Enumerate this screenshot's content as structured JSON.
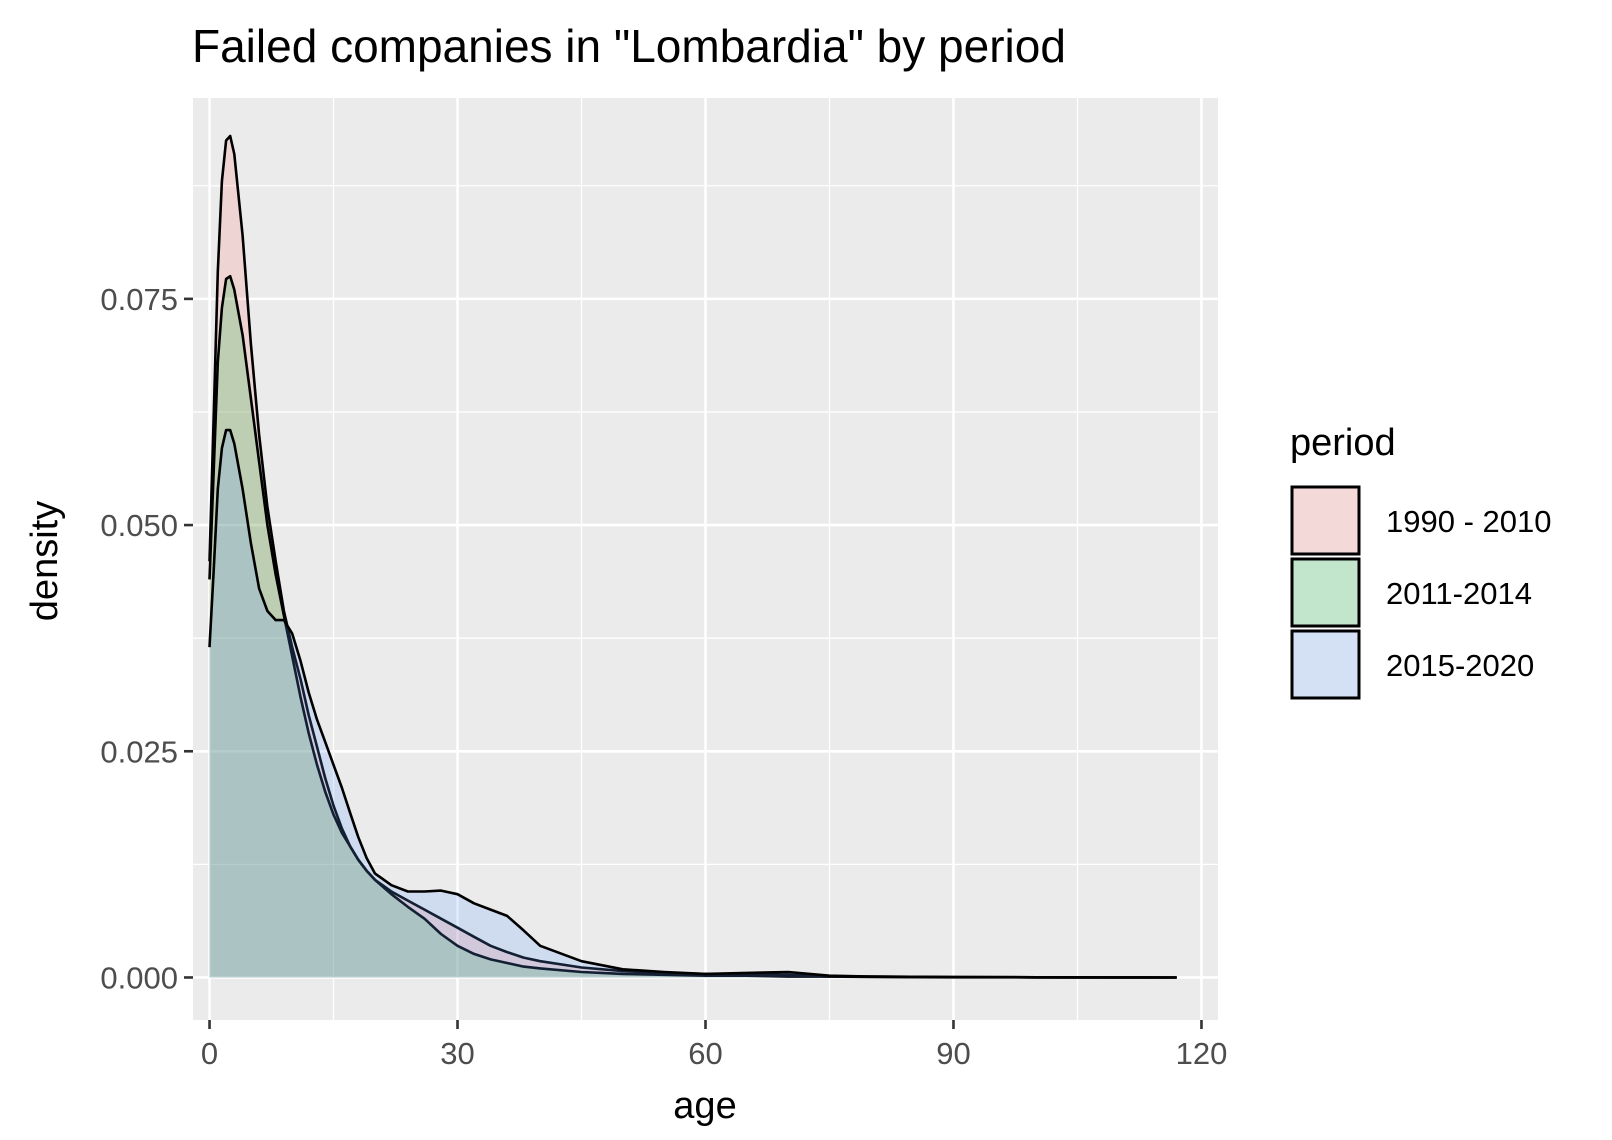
{
  "chart_data": {
    "type": "area",
    "title": "Failed companies in \"Lombardia\" by period",
    "xlabel": "age",
    "ylabel": "density",
    "xlim": [
      -2,
      122
    ],
    "ylim": [
      -0.0047,
      0.0972
    ],
    "x_ticks": [
      0,
      30,
      60,
      90,
      120
    ],
    "x_tick_labels": [
      "0",
      "30",
      "60",
      "90",
      "120"
    ],
    "y_ticks": [
      0.0,
      0.025,
      0.05,
      0.075
    ],
    "y_tick_labels": [
      "0.000",
      "0.025",
      "0.050",
      "0.075"
    ],
    "grid": true,
    "legend": {
      "title": "period",
      "position": "right"
    },
    "series": [
      {
        "name": "1990 - 2010",
        "fill": "#F8766D",
        "x": [
          0,
          0.5,
          1,
          1.5,
          2,
          2.5,
          3,
          4,
          5,
          6,
          7,
          8,
          9,
          10,
          11,
          12,
          13,
          14,
          15,
          16,
          17,
          18,
          19,
          20,
          22,
          24,
          26,
          28,
          30,
          32,
          34,
          36,
          38,
          40,
          45,
          50,
          55,
          60,
          65,
          70,
          75,
          80,
          90,
          100,
          110,
          117
        ],
        "values": [
          0.046,
          0.062,
          0.078,
          0.088,
          0.0925,
          0.093,
          0.091,
          0.082,
          0.07,
          0.06,
          0.052,
          0.046,
          0.0405,
          0.0365,
          0.033,
          0.029,
          0.0255,
          0.022,
          0.019,
          0.0165,
          0.0145,
          0.013,
          0.0118,
          0.0108,
          0.0095,
          0.0085,
          0.0075,
          0.0065,
          0.0055,
          0.0045,
          0.0035,
          0.0028,
          0.0022,
          0.0018,
          0.0011,
          0.0007,
          0.0005,
          0.0004,
          0.0003,
          0.0003,
          0.0001,
          0.0001,
          5e-05,
          2e-05,
          1e-05,
          0.0
        ]
      },
      {
        "name": "2011-2014",
        "fill": "#00BA38",
        "x": [
          0,
          0.5,
          1,
          1.5,
          2,
          2.5,
          3,
          4,
          5,
          6,
          7,
          8,
          9,
          10,
          11,
          12,
          13,
          14,
          15,
          16,
          17,
          18,
          19,
          20,
          22,
          24,
          26,
          28,
          30,
          32,
          34,
          36,
          38,
          40,
          45,
          50,
          55,
          60,
          65,
          70,
          75,
          80,
          90,
          100,
          110,
          117
        ],
        "values": [
          0.044,
          0.056,
          0.068,
          0.074,
          0.0772,
          0.0775,
          0.076,
          0.071,
          0.064,
          0.057,
          0.05,
          0.0445,
          0.04,
          0.0355,
          0.031,
          0.027,
          0.0235,
          0.0205,
          0.018,
          0.016,
          0.0145,
          0.013,
          0.0118,
          0.0108,
          0.0092,
          0.0078,
          0.0065,
          0.0048,
          0.0035,
          0.0026,
          0.002,
          0.0016,
          0.0012,
          0.001,
          0.0006,
          0.0004,
          0.0003,
          0.0002,
          0.0002,
          0.0001,
          0.0001,
          5e-05,
          2e-05,
          1e-05,
          0.0,
          0.0
        ]
      },
      {
        "name": "2015-2020",
        "fill": "#619CFF",
        "x": [
          0,
          0.5,
          1,
          1.5,
          2,
          2.5,
          3,
          4,
          5,
          6,
          7,
          8,
          9,
          10,
          11,
          12,
          13,
          14,
          15,
          16,
          17,
          18,
          19,
          20,
          22,
          24,
          26,
          28,
          30,
          32,
          34,
          36,
          38,
          40,
          45,
          50,
          55,
          60,
          65,
          70,
          75,
          80,
          90,
          100,
          110,
          117
        ],
        "values": [
          0.0365,
          0.045,
          0.054,
          0.0585,
          0.0605,
          0.0605,
          0.059,
          0.054,
          0.048,
          0.043,
          0.0405,
          0.0395,
          0.0395,
          0.038,
          0.035,
          0.0315,
          0.0285,
          0.026,
          0.0235,
          0.021,
          0.0182,
          0.0155,
          0.0132,
          0.0115,
          0.0102,
          0.0095,
          0.0095,
          0.0096,
          0.0092,
          0.0082,
          0.0075,
          0.0068,
          0.0052,
          0.0035,
          0.0018,
          0.0009,
          0.0006,
          0.0004,
          0.0005,
          0.0006,
          0.0002,
          0.0001,
          5e-05,
          2e-05,
          1e-05,
          0.0
        ]
      }
    ]
  }
}
